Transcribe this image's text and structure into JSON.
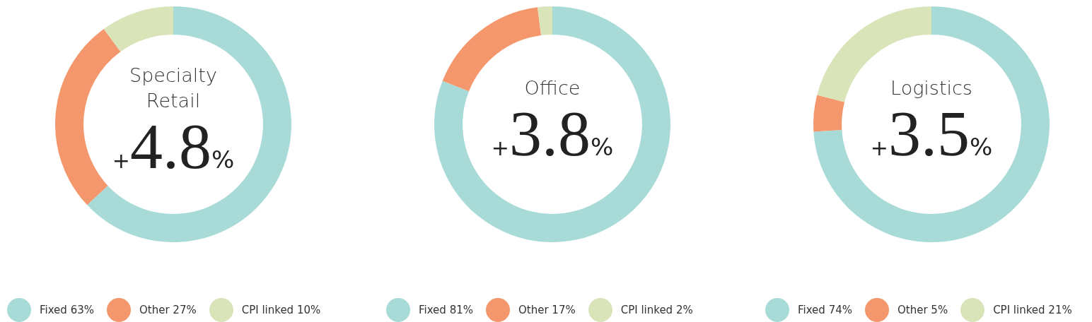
{
  "chart_data": [
    {
      "type": "donut",
      "title": "Specialty Retail",
      "categories": [
        "Fixed",
        "Other",
        "CPI linked"
      ],
      "values": [
        63,
        27,
        10
      ],
      "value_labels": [
        "63%",
        "27%",
        "10%"
      ],
      "colors": [
        "#a8dbd8",
        "#f5976c",
        "#d9e4b8"
      ],
      "annotations": [
        "+4.8%"
      ],
      "legend": "bottom"
    },
    {
      "type": "donut",
      "title": "Office",
      "categories": [
        "Fixed",
        "Other",
        "CPI linked"
      ],
      "values": [
        81,
        17,
        2
      ],
      "value_labels": [
        "81%",
        "17%",
        "2%"
      ],
      "colors": [
        "#a8dbd8",
        "#f5976c",
        "#d9e4b8"
      ],
      "annotations": [
        "+3.8%"
      ],
      "legend": "bottom"
    },
    {
      "type": "donut",
      "title": "Logistics",
      "categories": [
        "Fixed",
        "Other",
        "CPI linked"
      ],
      "values": [
        74,
        5,
        21
      ],
      "value_labels": [
        "74%",
        "5%",
        "21%"
      ],
      "colors": [
        "#a8dbd8",
        "#f5976c",
        "#d9e4b8"
      ],
      "annotations": [
        "+3.5%"
      ],
      "legend": "bottom"
    }
  ]
}
